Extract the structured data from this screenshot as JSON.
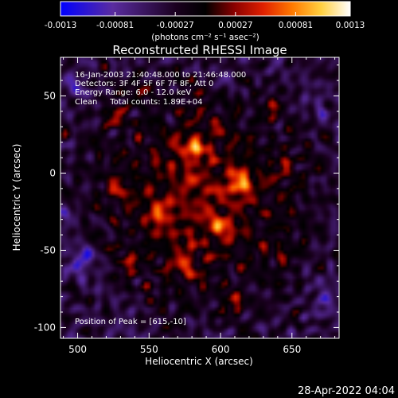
{
  "chart_data": {
    "type": "heatmap",
    "title": "Reconstructed RHESSI Image",
    "xlabel": "Heliocentric X (arcsec)",
    "ylabel": "Heliocentric Y (arcsec)",
    "xlim": [
      488,
      683
    ],
    "ylim": [
      -107,
      75
    ],
    "x_ticks": [
      500,
      550,
      600,
      650
    ],
    "y_ticks": [
      -100,
      -50,
      0,
      50
    ],
    "colorbar": {
      "range": [
        -0.0013,
        0.0013
      ],
      "tick_values": [
        -0.0013,
        -0.00081,
        -0.00027,
        0.00027,
        0.00081,
        0.0013
      ],
      "tick_labels": [
        "-0.0013",
        "-0.00081",
        "-0.00027",
        "0.00027",
        "0.00081",
        "0.0013"
      ],
      "unit_label": "(photons cm⁻² s⁻¹ asec⁻²)",
      "colors": [
        "#0000ff",
        "#5a2ca0",
        "#1a001e",
        "#000000",
        "#8a0000",
        "#e02000",
        "#ff7a00",
        "#ffd040",
        "#ffffff"
      ]
    },
    "annotations": [
      "16-Jan-2003 21:40:48.000 to 21:46:48.000",
      "Detectors: 3F 4F 5F 6F 7F 8F, Att 0",
      "Energy Range: 6.0 - 12.0 keV",
      "Clean     Total counts: 1.89E+04"
    ],
    "peak_label": "Position of Peak = [615,-10]",
    "peak": [
      615,
      -10
    ],
    "bright_sources": [
      {
        "x": 614,
        "y": -7,
        "peak": 0.0013
      },
      {
        "x": 581,
        "y": 17,
        "peak": 0.00105
      },
      {
        "x": 556,
        "y": -26,
        "peak": 0.00085
      },
      {
        "x": 600,
        "y": -35,
        "peak": 0.0009
      },
      {
        "x": 610,
        "y": -85,
        "peak": 0.0008
      },
      {
        "x": 527,
        "y": 37,
        "peak": 0.00078
      },
      {
        "x": 545,
        "y": 54,
        "peak": 0.0007
      },
      {
        "x": 636,
        "y": 43,
        "peak": 0.0007
      },
      {
        "x": 535,
        "y": -58,
        "peak": 0.00074
      },
      {
        "x": 575,
        "y": -60,
        "peak": 0.00076
      },
      {
        "x": 643,
        "y": -52,
        "peak": 0.0006
      },
      {
        "x": 528,
        "y": -12,
        "peak": 0.00075
      },
      {
        "x": 645,
        "y": 3,
        "peak": 0.00068
      }
    ],
    "negative_regions": [
      {
        "x": 503,
        "y": -57,
        "value": -0.0013
      },
      {
        "x": 493,
        "y": -30,
        "value": -0.00081
      },
      {
        "x": 668,
        "y": 45,
        "value": -0.00081
      },
      {
        "x": 600,
        "y": 63,
        "value": -0.00081
      },
      {
        "x": 500,
        "y": 55,
        "value": -0.00081
      },
      {
        "x": 672,
        "y": -80,
        "value": -0.00081
      },
      {
        "x": 540,
        "y": -98,
        "value": -0.0006
      }
    ]
  },
  "timestamp": "28-Apr-2022 04:04"
}
